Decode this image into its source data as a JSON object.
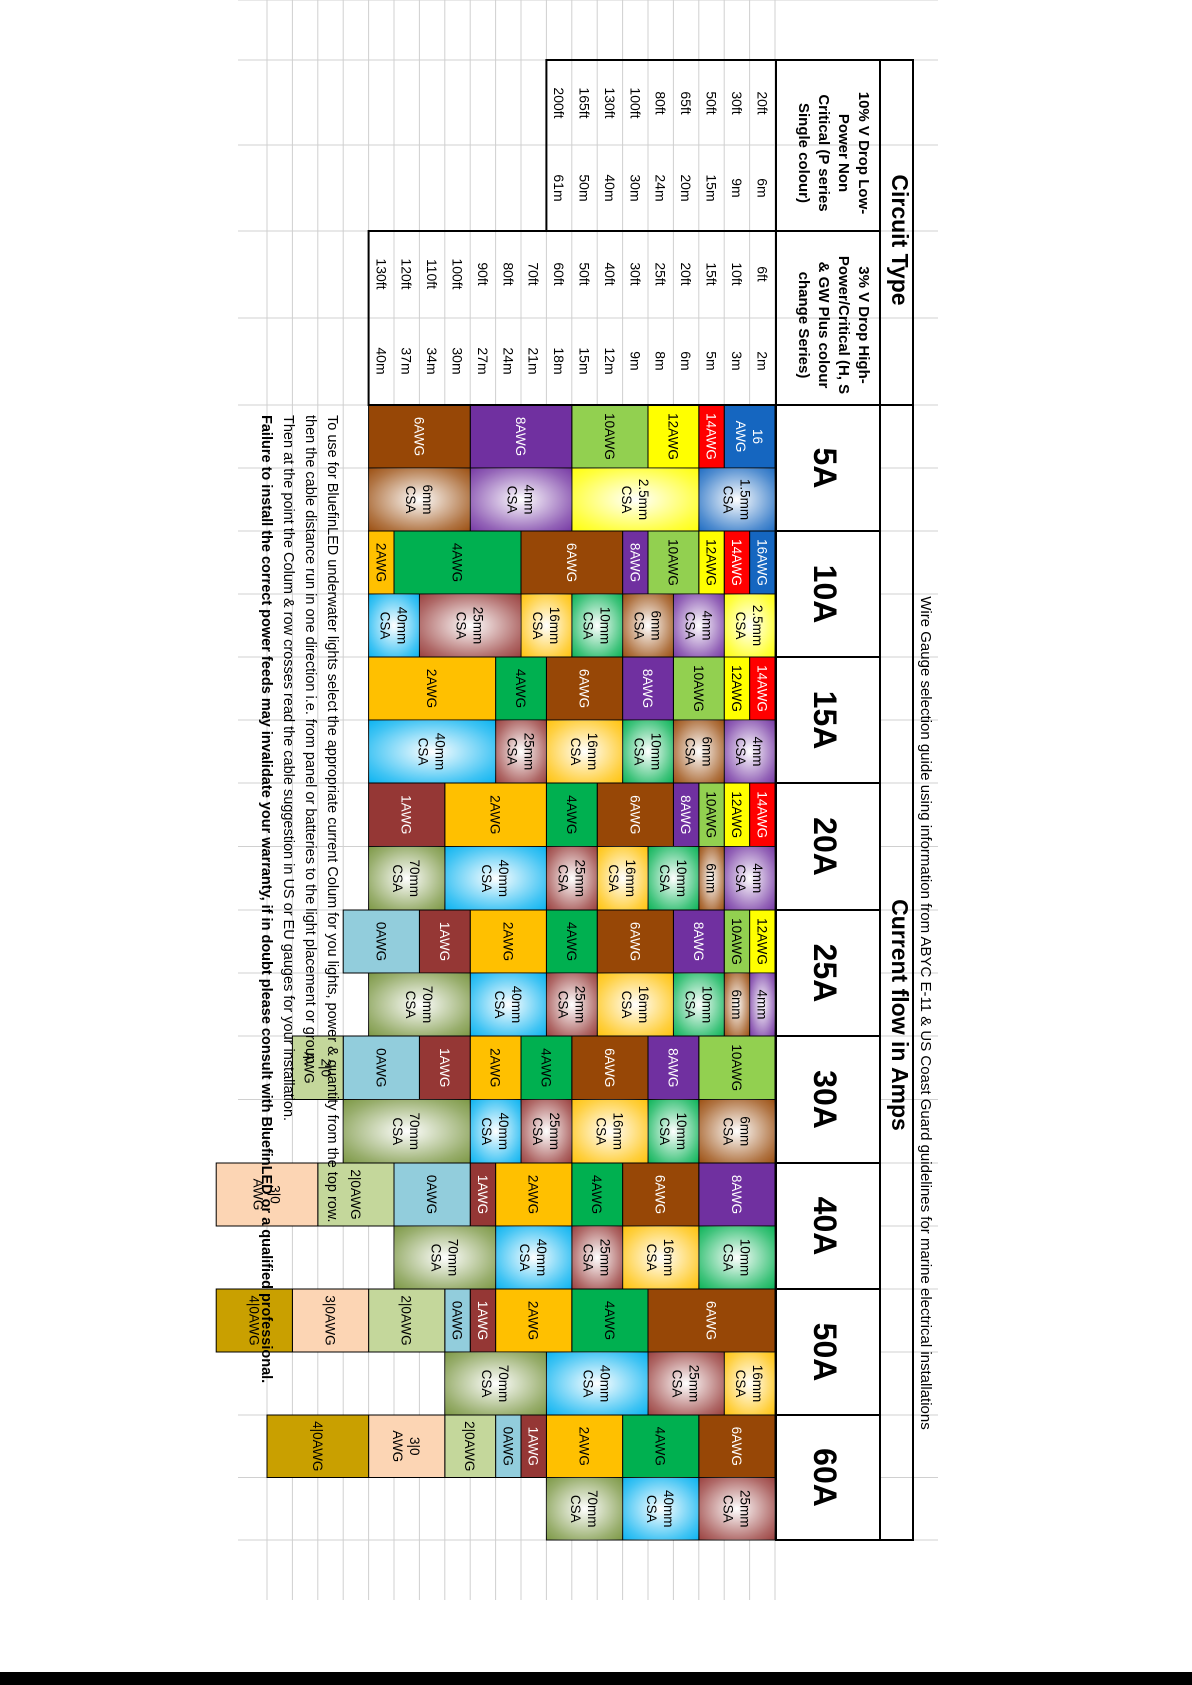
{
  "title": "Wire Gauge selection guide using information from ABYC E-11 & US Coast Guard guidelines for marine electrical installations",
  "circuit_type_label": "Circuit Type",
  "current_flow_label": "Current flow in Amps",
  "low_power_header": [
    "10% V Drop  Low-",
    "Power   Non",
    "Critical (P series",
    "Single colour)"
  ],
  "high_power_header": [
    "3% V Drop High-",
    "Power/Critical (H, S",
    "& GW Plus colour",
    "change Series)"
  ],
  "amps": [
    "5A",
    "10A",
    "15A",
    "20A",
    "25A",
    "30A",
    "40A",
    "50A",
    "60A"
  ],
  "low_power_rows": [
    {
      "ft": "20ft",
      "m": "6m"
    },
    {
      "ft": "30ft",
      "m": "9m"
    },
    {
      "ft": "50ft",
      "m": "15m"
    },
    {
      "ft": "65ft",
      "m": "20m"
    },
    {
      "ft": "80ft",
      "m": "24m"
    },
    {
      "ft": "100ft",
      "m": "30m"
    },
    {
      "ft": "130ft",
      "m": "40m"
    },
    {
      "ft": "165ft",
      "m": "50m"
    },
    {
      "ft": "200ft",
      "m": "61m"
    }
  ],
  "high_power_rows": [
    {
      "ft": "6ft",
      "m": "2m"
    },
    {
      "ft": "10ft",
      "m": "3m"
    },
    {
      "ft": "15ft",
      "m": "5m"
    },
    {
      "ft": "20ft",
      "m": "6m"
    },
    {
      "ft": "25ft",
      "m": "8m"
    },
    {
      "ft": "30ft",
      "m": "9m"
    },
    {
      "ft": "40ft",
      "m": "12m"
    },
    {
      "ft": "50ft",
      "m": "15m"
    },
    {
      "ft": "60ft",
      "m": "18m"
    },
    {
      "ft": "70ft",
      "m": "21m"
    },
    {
      "ft": "80ft",
      "m": "24m"
    },
    {
      "ft": "90ft",
      "m": "27m"
    },
    {
      "ft": "100ft",
      "m": "30m"
    },
    {
      "ft": "110ft",
      "m": "34m"
    },
    {
      "ft": "120ft",
      "m": "37m"
    },
    {
      "ft": "130ft",
      "m": "40m"
    }
  ],
  "gauge_colors": {
    "16AWG": "#1566c0",
    "14AWG": "#ff0000",
    "12AWG": "#ffff00",
    "10AWG": "#92d050",
    "8AWG": "#7030a0",
    "6AWG": "#974706",
    "4AWG": "#00b050",
    "2AWG": "#ffc000",
    "1AWG": "#953735",
    "0AWG": "#92cddc",
    "2/0AWG": "#c4d79b",
    "3/0AWG": "#fcd5b4",
    "4/0AWG": "#c9a000"
  },
  "mm_colors": {
    "1.5mm": "#1566c0",
    "2.5mm": "#ffff00",
    "4mm": "#7030a0",
    "6mm": "#974706",
    "10mm": "#00b050",
    "16mm": "#ffc000",
    "25mm": "#953735",
    "40mm": "#00b0f0",
    "70mm": "#76933c"
  },
  "columns": [
    {
      "awg": [
        {
          "label": "16 AWG",
          "start": 0,
          "span": 2
        },
        {
          "label": "14AWG",
          "start": 2,
          "span": 1
        },
        {
          "label": "12AWG",
          "start": 3,
          "span": 2
        },
        {
          "label": "10AWG",
          "start": 5,
          "span": 3
        },
        {
          "label": "8AWG",
          "start": 8,
          "span": 4
        },
        {
          "label": "6AWG",
          "start": 12,
          "span": 4
        }
      ],
      "mm": [
        {
          "label": "1.5mm CSA",
          "start": 0,
          "span": 3
        },
        {
          "label": "2.5mm CSA",
          "start": 3,
          "span": 5
        },
        {
          "label": "4mm CSA",
          "start": 8,
          "span": 4
        },
        {
          "label": "6mm CSA",
          "start": 12,
          "span": 4
        }
      ]
    },
    {
      "awg": [
        {
          "label": "16AWG",
          "start": 0,
          "span": 1
        },
        {
          "label": "14AWG",
          "start": 1,
          "span": 1
        },
        {
          "label": "12AWG",
          "start": 2,
          "span": 1
        },
        {
          "label": "10AWG",
          "start": 3,
          "span": 2
        },
        {
          "label": "8AWG",
          "start": 5,
          "span": 1
        },
        {
          "label": "6AWG",
          "start": 6,
          "span": 4
        },
        {
          "label": "4AWG",
          "start": 10,
          "span": 5
        },
        {
          "label": "2AWG",
          "start": 15,
          "span": 1
        }
      ],
      "mm": [
        {
          "label": "2.5mm CSA",
          "start": 0,
          "span": 2
        },
        {
          "label": "4mm CSA",
          "start": 2,
          "span": 2
        },
        {
          "label": "6mm CSA",
          "start": 4,
          "span": 2
        },
        {
          "label": "10mm CSA",
          "start": 6,
          "span": 2
        },
        {
          "label": "16mm CSA",
          "start": 8,
          "span": 2
        },
        {
          "label": "25mm CSA",
          "start": 10,
          "span": 4
        },
        {
          "label": "40mm CSA",
          "start": 14,
          "span": 2
        }
      ]
    },
    {
      "awg": [
        {
          "label": "14AWG",
          "start": 0,
          "span": 1
        },
        {
          "label": "12AWG",
          "start": 1,
          "span": 1
        },
        {
          "label": "10AWG",
          "start": 2,
          "span": 2
        },
        {
          "label": "8AWG",
          "start": 4,
          "span": 2
        },
        {
          "label": "6AWG",
          "start": 6,
          "span": 3
        },
        {
          "label": "4AWG",
          "start": 9,
          "span": 2
        },
        {
          "label": "2AWG",
          "start": 11,
          "span": 5
        }
      ],
      "mm": [
        {
          "label": "4mm CSA",
          "start": 0,
          "span": 2
        },
        {
          "label": "6mm CSA",
          "start": 2,
          "span": 2
        },
        {
          "label": "10mm CSA",
          "start": 4,
          "span": 2
        },
        {
          "label": "16mm CSA",
          "start": 6,
          "span": 3
        },
        {
          "label": "25mm CSA",
          "start": 9,
          "span": 2
        },
        {
          "label": "40mm CSA",
          "start": 11,
          "span": 5
        }
      ]
    },
    {
      "awg": [
        {
          "label": "14AWG",
          "start": 0,
          "span": 1
        },
        {
          "label": "12AWG",
          "start": 1,
          "span": 1
        },
        {
          "label": "10AWG",
          "start": 2,
          "span": 1
        },
        {
          "label": "8AWG",
          "start": 3,
          "span": 1
        },
        {
          "label": "6AWG",
          "start": 4,
          "span": 3
        },
        {
          "label": "4AWG",
          "start": 7,
          "span": 2
        },
        {
          "label": "2AWG",
          "start": 9,
          "span": 4
        },
        {
          "label": "1AWG",
          "start": 13,
          "span": 3
        }
      ],
      "mm": [
        {
          "label": "4mm CSA",
          "start": 0,
          "span": 2
        },
        {
          "label": "6mm",
          "start": 2,
          "span": 1
        },
        {
          "label": "10mm CSA",
          "start": 3,
          "span": 2
        },
        {
          "label": "16mm CSA",
          "start": 5,
          "span": 2
        },
        {
          "label": "25mm CSA",
          "start": 7,
          "span": 2
        },
        {
          "label": "40mm CSA",
          "start": 9,
          "span": 4
        },
        {
          "label": "70mm CSA",
          "start": 13,
          "span": 3
        }
      ]
    },
    {
      "awg": [
        {
          "label": "12AWG",
          "start": 0,
          "span": 1
        },
        {
          "label": "10AWG",
          "start": 1,
          "span": 1
        },
        {
          "label": "8AWG",
          "start": 2,
          "span": 2
        },
        {
          "label": "6AWG",
          "start": 4,
          "span": 3
        },
        {
          "label": "4AWG",
          "start": 7,
          "span": 2
        },
        {
          "label": "2AWG",
          "start": 9,
          "span": 3
        },
        {
          "label": "1AWG",
          "start": 12,
          "span": 2
        },
        {
          "label": "0AWG",
          "start": 14,
          "span": 3
        }
      ],
      "mm": [
        {
          "label": "4mm",
          "start": 0,
          "span": 1
        },
        {
          "label": "6mm",
          "start": 1,
          "span": 1
        },
        {
          "label": "10mm CSA",
          "start": 2,
          "span": 2
        },
        {
          "label": "16mm CSA",
          "start": 4,
          "span": 3
        },
        {
          "label": "25mm CSA",
          "start": 7,
          "span": 2
        },
        {
          "label": "40mm CSA",
          "start": 9,
          "span": 3
        },
        {
          "label": "70mm CSA",
          "start": 12,
          "span": 4
        }
      ]
    },
    {
      "awg": [
        {
          "label": "10AWG",
          "start": 0,
          "span": 3
        },
        {
          "label": "8AWG",
          "start": 3,
          "span": 2
        },
        {
          "label": "6AWG",
          "start": 5,
          "span": 3
        },
        {
          "label": "4AWG",
          "start": 8,
          "span": 2
        },
        {
          "label": "2AWG",
          "start": 10,
          "span": 2
        },
        {
          "label": "1AWG",
          "start": 12,
          "span": 2
        },
        {
          "label": "0AWG",
          "start": 14,
          "span": 3
        },
        {
          "label": "2|0 AWG",
          "start": 17,
          "span": 2
        }
      ],
      "mm": [
        {
          "label": "6mm CSA",
          "start": 0,
          "span": 3
        },
        {
          "label": "10mm CSA",
          "start": 3,
          "span": 2
        },
        {
          "label": "16mm CSA",
          "start": 5,
          "span": 3
        },
        {
          "label": "25mm CSA",
          "start": 8,
          "span": 2
        },
        {
          "label": "40mm CSA",
          "start": 10,
          "span": 2
        },
        {
          "label": "70mm CSA",
          "start": 12,
          "span": 5
        }
      ]
    },
    {
      "awg": [
        {
          "label": "8AWG",
          "start": 0,
          "span": 3
        },
        {
          "label": "6AWG",
          "start": 3,
          "span": 3
        },
        {
          "label": "4AWG",
          "start": 6,
          "span": 2
        },
        {
          "label": "2AWG",
          "start": 8,
          "span": 3
        },
        {
          "label": "1AWG",
          "start": 11,
          "span": 1
        },
        {
          "label": "0AWG",
          "start": 12,
          "span": 3
        },
        {
          "label": "2|0AWG",
          "start": 15,
          "span": 3
        },
        {
          "label": "3|0 AWG",
          "start": 18,
          "span": 4
        }
      ],
      "mm": [
        {
          "label": "10mm CSA",
          "start": 0,
          "span": 3
        },
        {
          "label": "16mm CSA",
          "start": 3,
          "span": 3
        },
        {
          "label": "25mm CSA",
          "start": 6,
          "span": 2
        },
        {
          "label": "40mm CSA",
          "start": 8,
          "span": 3
        },
        {
          "label": "70mm CSA",
          "start": 11,
          "span": 4
        }
      ]
    },
    {
      "awg": [
        {
          "label": "6AWG",
          "start": 0,
          "span": 5
        },
        {
          "label": "4AWG",
          "start": 5,
          "span": 3
        },
        {
          "label": "2AWG",
          "start": 8,
          "span": 3
        },
        {
          "label": "1AWG",
          "start": 11,
          "span": 1
        },
        {
          "label": "0AWG",
          "start": 12,
          "span": 1
        },
        {
          "label": "2|0AWG",
          "start": 13,
          "span": 3
        },
        {
          "label": "3|0AWG",
          "start": 16,
          "span": 3
        },
        {
          "label": "4|0AWG",
          "start": 19,
          "span": 3
        }
      ],
      "mm": [
        {
          "label": "16mm CSA",
          "start": 0,
          "span": 2
        },
        {
          "label": "25mm CSA",
          "start": 2,
          "span": 3
        },
        {
          "label": "40mm CSA",
          "start": 5,
          "span": 4
        },
        {
          "label": "70mm CSA",
          "start": 9,
          "span": 4
        }
      ]
    },
    {
      "awg": [
        {
          "label": "6AWG",
          "start": 0,
          "span": 3
        },
        {
          "label": "4AWG",
          "start": 3,
          "span": 3
        },
        {
          "label": "2AWG",
          "start": 6,
          "span": 3
        },
        {
          "label": "1AWG",
          "start": 9,
          "span": 1
        },
        {
          "label": "0AWG",
          "start": 10,
          "span": 1
        },
        {
          "label": "2|0AWG",
          "start": 11,
          "span": 2
        },
        {
          "label": "3|0 AWG",
          "start": 13,
          "span": 3
        },
        {
          "label": "4|0AWG",
          "start": 16,
          "span": 4
        }
      ],
      "mm": [
        {
          "label": "25mm CSA",
          "start": 0,
          "span": 3
        },
        {
          "label": "40mm CSA",
          "start": 3,
          "span": 3
        },
        {
          "label": "70mm CSA",
          "start": 6,
          "span": 3
        }
      ]
    }
  ],
  "instructions": [
    "To use for BluefinLED underwater lights select the appropriate current Colum for you lights, power &  quantity from the top row.",
    "then the cable distance run in one direction i.e. from panel or batteries to the light placement or group.",
    "Then at the point the Colum & row crosses read the cable suggestion in US or EU gauges for your installation."
  ],
  "warning": "Failure to install the correct power feeds may invalidate your warranty, if in doubt please consult with BluefinLED or a qualified professional."
}
